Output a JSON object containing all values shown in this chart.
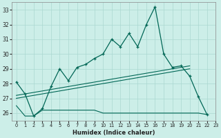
{
  "xlabel": "Humidex (Indice chaleur)",
  "bg_color": "#cceee8",
  "grid_color": "#aad8d0",
  "line_color": "#006655",
  "x_main": [
    0,
    1,
    2,
    3,
    4,
    5,
    6,
    7,
    8,
    9,
    10,
    11,
    12,
    13,
    14,
    15,
    16,
    17,
    18,
    19,
    20,
    21,
    22
  ],
  "y_main": [
    28.1,
    27.3,
    25.8,
    26.3,
    27.8,
    29.0,
    28.2,
    29.1,
    29.3,
    29.7,
    30.0,
    31.0,
    30.5,
    31.4,
    30.5,
    32.0,
    33.2,
    30.0,
    29.1,
    29.2,
    28.5,
    27.1,
    25.9
  ],
  "y_flat": [
    26.5,
    25.8,
    25.8,
    26.2,
    26.2,
    26.2,
    26.2,
    26.2,
    26.2,
    26.2,
    26.0,
    26.0,
    26.0,
    26.0,
    26.0,
    26.0,
    26.0,
    26.0,
    26.0,
    26.0,
    26.0,
    26.0,
    25.9
  ],
  "line3": [
    [
      0,
      27.0
    ],
    [
      20,
      29.0
    ]
  ],
  "line4": [
    [
      0,
      27.2
    ],
    [
      20,
      29.2
    ]
  ],
  "ylim": [
    25.5,
    33.5
  ],
  "xlim": [
    -0.5,
    23.0
  ],
  "yticks": [
    26,
    27,
    28,
    29,
    30,
    31,
    32,
    33
  ],
  "xticks": [
    0,
    1,
    2,
    3,
    4,
    5,
    6,
    7,
    8,
    9,
    10,
    11,
    12,
    13,
    14,
    15,
    16,
    17,
    18,
    19,
    20,
    21,
    22,
    23
  ]
}
